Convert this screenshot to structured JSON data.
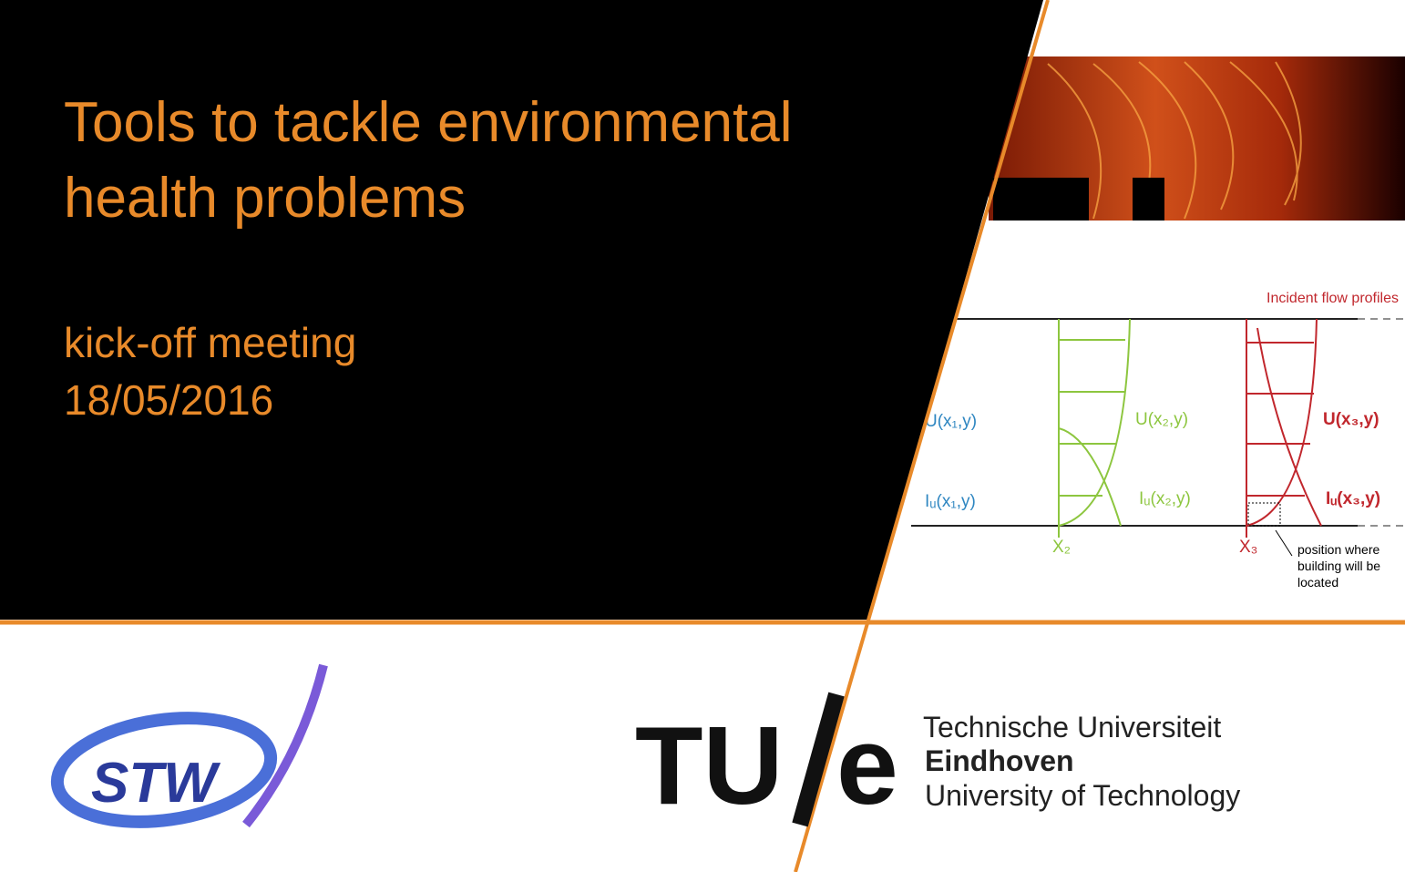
{
  "slide": {
    "title_lines": [
      "Tools to tackle environmental",
      "health problems"
    ],
    "subtitle": "kick-off meeting",
    "date": "18/05/2016"
  },
  "figure": {
    "legend": "Incident flow profiles",
    "labels": [
      "U(x₁,y)",
      "Iᵤ(x₁,y)",
      "U(x₂,y)",
      "Iᵤ(x₂,y)",
      "U(x₃,y)",
      "Iᵤ(x₃,y)",
      "X₂",
      "X₃"
    ],
    "annotation": [
      "position where",
      "building will be",
      "located"
    ]
  },
  "logos": {
    "stw": "STW",
    "tue_left": "TU",
    "tue_right": "e",
    "tue_name": [
      "Technische Universiteit",
      "Eindhoven",
      "University of Technology"
    ]
  }
}
